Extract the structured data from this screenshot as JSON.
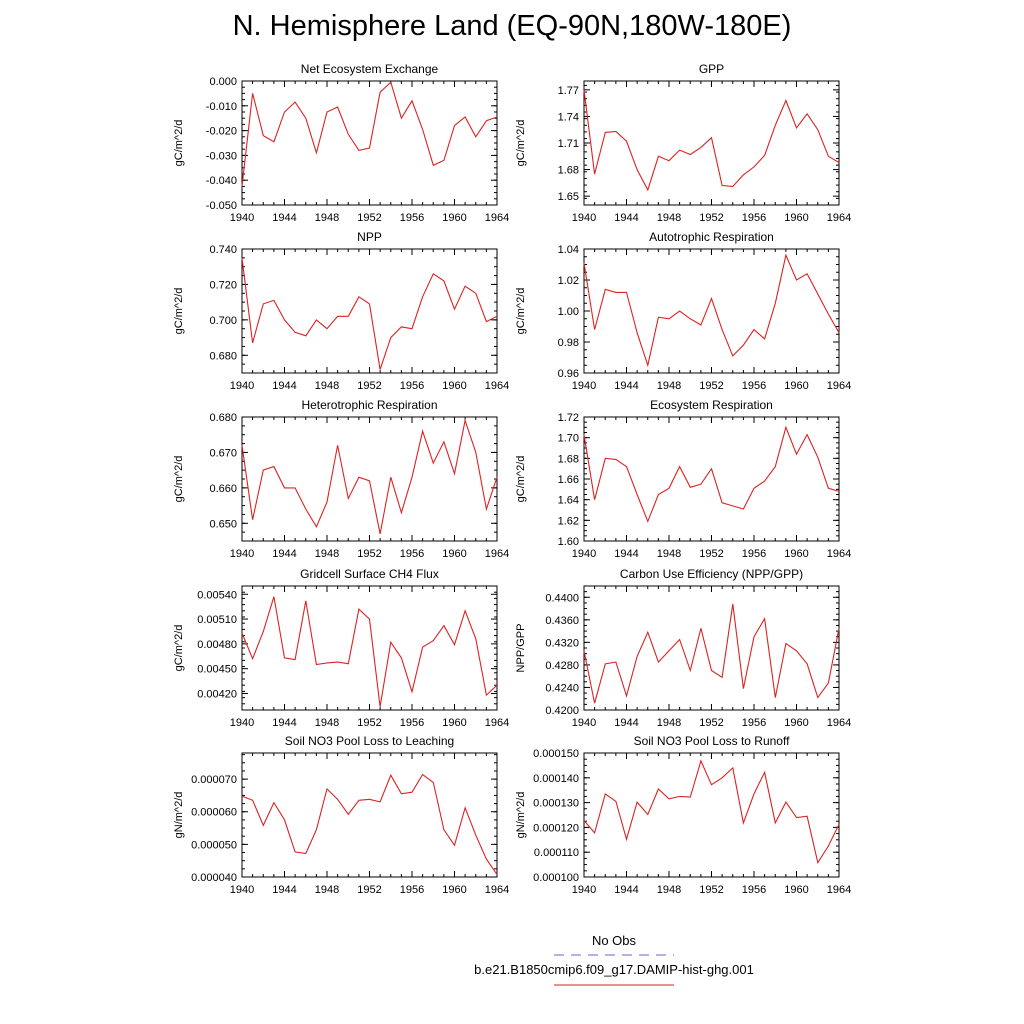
{
  "title": "N. Hemisphere Land (EQ-90N,180W-180E)",
  "legend": {
    "entries": [
      {
        "label": "No Obs",
        "color": "#6666cc",
        "style": "dashed"
      },
      {
        "label": "b.e21.B1850cmip6.f09_g17.DAMIP-hist-ghg.001",
        "color": "#dd2222",
        "style": "solid"
      }
    ]
  },
  "chart_data": [
    {
      "type": "line",
      "title": "Net Ecosystem Exchange",
      "ylabel": "gC/m^2/d",
      "xlim": [
        1940,
        1964
      ],
      "xticks": [
        "1940",
        "1944",
        "1948",
        "1952",
        "1956",
        "1960",
        "1964"
      ],
      "ylim": [
        -0.05,
        0.0
      ],
      "yticks": [
        "0.000",
        "-0.010",
        "-0.020",
        "-0.030",
        "-0.040",
        "-0.050"
      ],
      "ytick_values": [
        0.0,
        -0.01,
        -0.02,
        -0.03,
        -0.04,
        -0.05
      ],
      "x": [
        1940,
        1941,
        1942,
        1943,
        1944,
        1945,
        1946,
        1947,
        1948,
        1949,
        1950,
        1951,
        1952,
        1953,
        1954,
        1955,
        1956,
        1957,
        1958,
        1959,
        1960,
        1961,
        1962,
        1963,
        1964
      ],
      "series": [
        {
          "color": "#dd2222",
          "values": [
            -0.0425,
            -0.005,
            -0.022,
            -0.0245,
            -0.0125,
            -0.0085,
            -0.015,
            -0.029,
            -0.0125,
            -0.0105,
            -0.0215,
            -0.028,
            -0.027,
            -0.0045,
            -0.0005,
            -0.015,
            -0.008,
            -0.0195,
            -0.034,
            -0.032,
            -0.018,
            -0.0145,
            -0.0225,
            -0.016,
            -0.0145
          ]
        }
      ]
    },
    {
      "type": "line",
      "title": "GPP",
      "ylabel": "gC/m^2/d",
      "xlim": [
        1940,
        1964
      ],
      "xticks": [
        "1940",
        "1944",
        "1948",
        "1952",
        "1956",
        "1960",
        "1964"
      ],
      "ylim": [
        1.64,
        1.78
      ],
      "yticks": [
        "1.77",
        "1.74",
        "1.71",
        "1.68",
        "1.65"
      ],
      "ytick_values": [
        1.77,
        1.74,
        1.71,
        1.68,
        1.65
      ],
      "x": [
        1940,
        1941,
        1942,
        1943,
        1944,
        1945,
        1946,
        1947,
        1948,
        1949,
        1950,
        1951,
        1952,
        1953,
        1954,
        1955,
        1956,
        1957,
        1958,
        1959,
        1960,
        1961,
        1962,
        1963,
        1964
      ],
      "series": [
        {
          "color": "#dd2222",
          "values": [
            1.77,
            1.675,
            1.722,
            1.723,
            1.712,
            1.68,
            1.657,
            1.695,
            1.69,
            1.702,
            1.697,
            1.705,
            1.716,
            1.662,
            1.661,
            1.674,
            1.683,
            1.696,
            1.73,
            1.758,
            1.727,
            1.743,
            1.725,
            1.695,
            1.688
          ]
        }
      ]
    },
    {
      "type": "line",
      "title": "NPP",
      "ylabel": "gC/m^2/d",
      "xlim": [
        1940,
        1964
      ],
      "xticks": [
        "1940",
        "1944",
        "1948",
        "1952",
        "1956",
        "1960",
        "1964"
      ],
      "ylim": [
        0.67,
        0.74
      ],
      "yticks": [
        "0.740",
        "0.720",
        "0.700",
        "0.680"
      ],
      "ytick_values": [
        0.74,
        0.72,
        0.7,
        0.68
      ],
      "x": [
        1940,
        1941,
        1942,
        1943,
        1944,
        1945,
        1946,
        1947,
        1948,
        1949,
        1950,
        1951,
        1952,
        1953,
        1954,
        1955,
        1956,
        1957,
        1958,
        1959,
        1960,
        1961,
        1962,
        1963,
        1964
      ],
      "series": [
        {
          "color": "#dd2222",
          "values": [
            0.735,
            0.687,
            0.709,
            0.711,
            0.7,
            0.693,
            0.691,
            0.7,
            0.695,
            0.702,
            0.702,
            0.713,
            0.709,
            0.672,
            0.69,
            0.696,
            0.695,
            0.713,
            0.726,
            0.722,
            0.706,
            0.719,
            0.715,
            0.699,
            0.702
          ]
        }
      ]
    },
    {
      "type": "line",
      "title": "Autotrophic Respiration",
      "ylabel": "gC/m^2/d",
      "xlim": [
        1940,
        1964
      ],
      "xticks": [
        "1940",
        "1944",
        "1948",
        "1952",
        "1956",
        "1960",
        "1964"
      ],
      "ylim": [
        0.96,
        1.04
      ],
      "yticks": [
        "1.04",
        "1.02",
        "1.00",
        "0.98",
        "0.96"
      ],
      "ytick_values": [
        1.04,
        1.02,
        1.0,
        0.98,
        0.96
      ],
      "x": [
        1940,
        1941,
        1942,
        1943,
        1944,
        1945,
        1946,
        1947,
        1948,
        1949,
        1950,
        1951,
        1952,
        1953,
        1954,
        1955,
        1956,
        1957,
        1958,
        1959,
        1960,
        1961,
        1962,
        1963,
        1964
      ],
      "series": [
        {
          "color": "#dd2222",
          "values": [
            1.031,
            0.988,
            1.014,
            1.012,
            1.012,
            0.986,
            0.965,
            0.996,
            0.995,
            1.0,
            0.995,
            0.991,
            1.008,
            0.988,
            0.971,
            0.978,
            0.988,
            0.982,
            1.005,
            1.036,
            1.02,
            1.024,
            1.011,
            0.998,
            0.986
          ]
        }
      ]
    },
    {
      "type": "line",
      "title": "Heterotrophic Respiration",
      "ylabel": "gC/m^2/d",
      "xlim": [
        1940,
        1964
      ],
      "xticks": [
        "1940",
        "1944",
        "1948",
        "1952",
        "1956",
        "1960",
        "1964"
      ],
      "ylim": [
        0.645,
        0.68
      ],
      "yticks": [
        "0.680",
        "0.670",
        "0.660",
        "0.650"
      ],
      "ytick_values": [
        0.68,
        0.67,
        0.66,
        0.65
      ],
      "x": [
        1940,
        1941,
        1942,
        1943,
        1944,
        1945,
        1946,
        1947,
        1948,
        1949,
        1950,
        1951,
        1952,
        1953,
        1954,
        1955,
        1956,
        1957,
        1958,
        1959,
        1960,
        1961,
        1962,
        1963,
        1964
      ],
      "series": [
        {
          "color": "#dd2222",
          "values": [
            0.672,
            0.651,
            0.665,
            0.666,
            0.66,
            0.66,
            0.654,
            0.649,
            0.656,
            0.672,
            0.657,
            0.663,
            0.662,
            0.647,
            0.663,
            0.653,
            0.663,
            0.676,
            0.667,
            0.673,
            0.664,
            0.679,
            0.67,
            0.654,
            0.663
          ]
        }
      ]
    },
    {
      "type": "line",
      "title": "Ecosystem Respiration",
      "ylabel": "gC/m^2/d",
      "xlim": [
        1940,
        1964
      ],
      "xticks": [
        "1940",
        "1944",
        "1948",
        "1952",
        "1956",
        "1960",
        "1964"
      ],
      "ylim": [
        1.6,
        1.72
      ],
      "yticks": [
        "1.72",
        "1.70",
        "1.68",
        "1.66",
        "1.64",
        "1.62",
        "1.60"
      ],
      "ytick_values": [
        1.72,
        1.7,
        1.68,
        1.66,
        1.64,
        1.62,
        1.6
      ],
      "x": [
        1940,
        1941,
        1942,
        1943,
        1944,
        1945,
        1946,
        1947,
        1948,
        1949,
        1950,
        1951,
        1952,
        1953,
        1954,
        1955,
        1956,
        1957,
        1958,
        1959,
        1960,
        1961,
        1962,
        1963,
        1964
      ],
      "series": [
        {
          "color": "#dd2222",
          "values": [
            1.703,
            1.64,
            1.68,
            1.679,
            1.672,
            1.645,
            1.619,
            1.645,
            1.651,
            1.672,
            1.652,
            1.655,
            1.67,
            1.637,
            1.634,
            1.631,
            1.651,
            1.658,
            1.672,
            1.71,
            1.684,
            1.703,
            1.681,
            1.651,
            1.648
          ]
        }
      ]
    },
    {
      "type": "line",
      "title": "Gridcell Surface CH4 Flux",
      "ylabel": "gC/m^2/d",
      "xlim": [
        1940,
        1964
      ],
      "xticks": [
        "1940",
        "1944",
        "1948",
        "1952",
        "1956",
        "1960",
        "1964"
      ],
      "ylim": [
        0.004,
        0.0055
      ],
      "yticks": [
        "0.00540",
        "0.00510",
        "0.00480",
        "0.00450",
        "0.00420"
      ],
      "ytick_values": [
        0.0054,
        0.0051,
        0.0048,
        0.0045,
        0.0042
      ],
      "x": [
        1940,
        1941,
        1942,
        1943,
        1944,
        1945,
        1946,
        1947,
        1948,
        1949,
        1950,
        1951,
        1952,
        1953,
        1954,
        1955,
        1956,
        1957,
        1958,
        1959,
        1960,
        1961,
        1962,
        1963,
        1964
      ],
      "series": [
        {
          "color": "#dd2222",
          "values": [
            0.00493,
            0.00462,
            0.00495,
            0.00537,
            0.00463,
            0.00461,
            0.00532,
            0.00455,
            0.00457,
            0.00458,
            0.00456,
            0.00522,
            0.0051,
            0.00404,
            0.00482,
            0.00463,
            0.00422,
            0.00476,
            0.00484,
            0.00502,
            0.00479,
            0.0052,
            0.00486,
            0.00418,
            0.0043
          ]
        }
      ]
    },
    {
      "type": "line",
      "title": "Carbon Use Efficiency (NPP/GPP)",
      "ylabel": "NPP/GPP",
      "xlim": [
        1940,
        1964
      ],
      "xticks": [
        "1940",
        "1944",
        "1948",
        "1952",
        "1956",
        "1960",
        "1964"
      ],
      "ylim": [
        0.42,
        0.442
      ],
      "yticks": [
        "0.4400",
        "0.4360",
        "0.4320",
        "0.4280",
        "0.4240",
        "0.4200"
      ],
      "ytick_values": [
        0.44,
        0.436,
        0.432,
        0.428,
        0.424,
        0.42
      ],
      "x": [
        1940,
        1941,
        1942,
        1943,
        1944,
        1945,
        1946,
        1947,
        1948,
        1949,
        1950,
        1951,
        1952,
        1953,
        1954,
        1955,
        1956,
        1957,
        1958,
        1959,
        1960,
        1961,
        1962,
        1963,
        1964
      ],
      "series": [
        {
          "color": "#dd2222",
          "values": [
            0.4305,
            0.4212,
            0.4282,
            0.4285,
            0.4225,
            0.4295,
            0.4338,
            0.4285,
            0.4305,
            0.4325,
            0.427,
            0.4345,
            0.427,
            0.4258,
            0.4388,
            0.4238,
            0.433,
            0.4362,
            0.4222,
            0.4318,
            0.4305,
            0.4282,
            0.4222,
            0.4248,
            0.4345
          ]
        }
      ]
    },
    {
      "type": "line",
      "title": "Soil NO3 Pool Loss to Leaching",
      "ylabel": "gN/m^2/d",
      "xlim": [
        1940,
        1964
      ],
      "xticks": [
        "1940",
        "1944",
        "1948",
        "1952",
        "1956",
        "1960",
        "1964"
      ],
      "ylim": [
        4e-05,
        7.8e-05
      ],
      "yticks": [
        "0.000070",
        "0.000060",
        "0.000050",
        "0.000040"
      ],
      "ytick_values": [
        7e-05,
        6e-05,
        5e-05,
        4e-05
      ],
      "x": [
        1940,
        1941,
        1942,
        1943,
        1944,
        1945,
        1946,
        1947,
        1948,
        1949,
        1950,
        1951,
        1952,
        1953,
        1954,
        1955,
        1956,
        1957,
        1958,
        1959,
        1960,
        1961,
        1962,
        1963,
        1964
      ],
      "series": [
        {
          "color": "#dd2222",
          "values": [
            6.48e-05,
            6.35e-05,
            5.58e-05,
            6.28e-05,
            5.75e-05,
            4.77e-05,
            4.72e-05,
            5.45e-05,
            6.7e-05,
            6.38e-05,
            5.92e-05,
            6.35e-05,
            6.38e-05,
            6.3e-05,
            7.12e-05,
            6.55e-05,
            6.6e-05,
            7.14e-05,
            6.9e-05,
            5.45e-05,
            4.97e-05,
            6.12e-05,
            5.28e-05,
            4.55e-05,
            4.08e-05
          ]
        }
      ]
    },
    {
      "type": "line",
      "title": "Soil NO3 Pool Loss to Runoff",
      "ylabel": "gN/m^2/d",
      "xlim": [
        1940,
        1964
      ],
      "xticks": [
        "1940",
        "1944",
        "1948",
        "1952",
        "1956",
        "1960",
        "1964"
      ],
      "ylim": [
        0.0001,
        0.00015
      ],
      "yticks": [
        "0.000150",
        "0.000140",
        "0.000130",
        "0.000120",
        "0.000110",
        "0.000100"
      ],
      "ytick_values": [
        0.00015,
        0.00014,
        0.00013,
        0.00012,
        0.00011,
        0.0001
      ],
      "x": [
        1940,
        1941,
        1942,
        1943,
        1944,
        1945,
        1946,
        1947,
        1948,
        1949,
        1950,
        1951,
        1952,
        1953,
        1954,
        1955,
        1956,
        1957,
        1958,
        1959,
        1960,
        1961,
        1962,
        1963,
        1964
      ],
      "series": [
        {
          "color": "#dd2222",
          "values": [
            0.0001228,
            0.0001178,
            0.0001335,
            0.0001305,
            0.0001152,
            0.0001302,
            0.0001252,
            0.0001355,
            0.0001315,
            0.0001325,
            0.0001322,
            0.0001468,
            0.0001372,
            0.00014,
            0.000144,
            0.0001218,
            0.0001335,
            0.0001422,
            0.0001218,
            0.0001302,
            0.000124,
            0.0001245,
            0.0001058,
            0.0001125,
            0.0001212
          ]
        }
      ]
    }
  ]
}
